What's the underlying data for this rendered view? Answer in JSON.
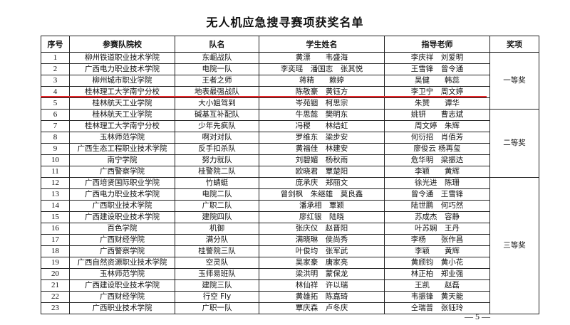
{
  "title": "无人机应急搜寻赛项获奖名单",
  "headers": [
    "序号",
    "参赛队院校",
    "队名",
    "学生姓名",
    "指导老师",
    "奖项"
  ],
  "rows": [
    {
      "no": "1",
      "school": "柳州铁道职业技术学院",
      "team": "东崛战队",
      "students": "黄漂　　韦盛海",
      "teachers": "李庆祥　刘爱明"
    },
    {
      "no": "2",
      "school": "广西电力职业技术学院",
      "team": "电院一队",
      "students": "李奕瑶　潘国志　张其悦",
      "teachers": "王雪锋　曾令通"
    },
    {
      "no": "3",
      "school": "柳州城市职业学院",
      "team": "王者之师",
      "students": "蒋精　　赖婷",
      "teachers": "吴健　　韩蕊"
    },
    {
      "no": "4",
      "school": "桂林理工大学南宁分校",
      "team": "地表最强战队",
      "students": "陈敬豪　黄钰方",
      "teachers": "李卫宁　周文婷"
    },
    {
      "no": "5",
      "school": "桂林航天工业学院",
      "team": "大小姐驾到",
      "students": "岑苑锢　柯思宗",
      "teachers": "朱赟　　谭华"
    },
    {
      "no": "6",
      "school": "桂林航天工业学院",
      "team": "碱基互补配队",
      "students": "牛思懿　樊明东",
      "teachers": "姚钘　　曹志斌"
    },
    {
      "no": "7",
      "school": "桂林理工大学南宁分校",
      "team": "少年先疯队",
      "students": "冯稷　　林结虹",
      "teachers": "周文婷　朱辉"
    },
    {
      "no": "8",
      "school": "玉林师范学院",
      "team": "啊对对队",
      "students": "罗维东　梁步安",
      "teachers": "何衍招　肖佰芳"
    },
    {
      "no": "9",
      "school": "广西生态工程职业技术学院",
      "team": "反手扣杀队",
      "students": "黄福佳　林建安",
      "teachers": "廖俊云 杨再玺"
    },
    {
      "no": "10",
      "school": "南宁学院",
      "team": "努力就队",
      "students": "刘碧媚　杨秋雨",
      "teachers": "危华明　梁振达"
    },
    {
      "no": "11",
      "school": "广西警察学院",
      "team": "桂警院二队",
      "students": "欧晓君　覃楚阳",
      "teachers": "李颖　　黄辉"
    },
    {
      "no": "12",
      "school": "广西培贤国际职业学院",
      "team": "竹蜻蜓",
      "students": "庞承庆　郑丽文",
      "teachers": "徐光进　陈珊"
    },
    {
      "no": "13",
      "school": "广西电力职业技术学院",
      "team": "电院二队",
      "students": "曾剑枫　朱继雄　莫良鑫",
      "teachers": "曾令通　王雪锋"
    },
    {
      "no": "14",
      "school": "广西职业技术学院",
      "team": "广职二队",
      "students": "潘承相　覃颖",
      "teachers": "陆世鹏　何巧然"
    },
    {
      "no": "15",
      "school": "广西建设职业技术学院",
      "team": "建院四队",
      "students": "廖红银　陆晓",
      "teachers": "苏成杰　容静"
    },
    {
      "no": "16",
      "school": "百色学院",
      "team": "机御",
      "students": "张庆仪　赵晋阳",
      "teachers": "叶苏娴　王丹"
    },
    {
      "no": "17",
      "school": "广西财经学院",
      "team": "满分队",
      "students": "满晓琳　侯尚秀",
      "teachers": "李杨　　张作昌"
    },
    {
      "no": "18",
      "school": "广西警察学院",
      "team": "桂警院三队",
      "students": "叶俊均　张军武",
      "teachers": "李颖　　黄辉"
    },
    {
      "no": "19",
      "school": "广西自然资源职业技术学院",
      "team": "空灵队",
      "students": "吴家豪　唐家亮",
      "teachers": "黄颀钧　黄小花"
    },
    {
      "no": "20",
      "school": "玉林师范学院",
      "team": "玉师易班队",
      "students": "梁洪明　蒙保龙",
      "teachers": "林正柏　郑业强"
    },
    {
      "no": "21",
      "school": "广西建设职业技术学院",
      "team": "建院三队",
      "students": "林仙祥　许以瑞",
      "teachers": "王凯　　赵磊"
    },
    {
      "no": "22",
      "school": "广西财经学院",
      "team": "行空 Fly",
      "students": "黄雄拓　陈嘉琦",
      "teachers": "韦振锋　黄天能"
    },
    {
      "no": "23",
      "school": "广西职业技术学院",
      "team": "广职一队",
      "students": "覃庆森　卢冬庆",
      "teachers": "仝瑞普　张钰玲"
    }
  ],
  "awards": [
    {
      "label": "一等奖",
      "rows": 5
    },
    {
      "label": "二等奖",
      "rows": 6
    },
    {
      "label": "三等奖",
      "rows": 12
    }
  ],
  "page_number": "— 5 —",
  "annotation_color": "#e8262a"
}
